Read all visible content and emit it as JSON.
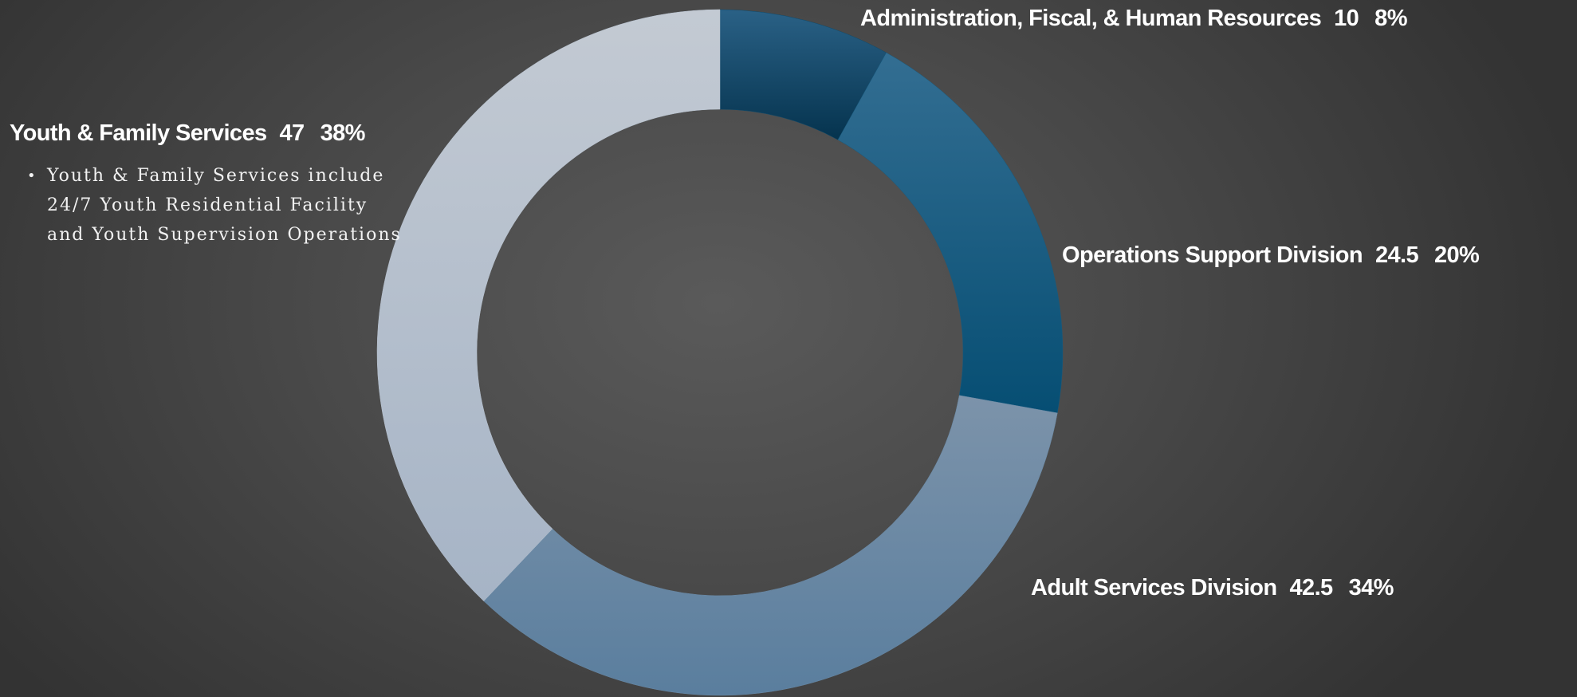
{
  "chart_data": {
    "type": "pie",
    "variant": "donut",
    "title": "",
    "slices": [
      {
        "name": "Administration, Fiscal, & Human Resources",
        "value": 10,
        "value_label": "10",
        "percent_label": "8%",
        "color": "#0f4a6b"
      },
      {
        "name": "Operations Support Division",
        "value": 24.5,
        "value_label": "24.5",
        "percent_label": "20%",
        "color": "#185a7e"
      },
      {
        "name": "Adult Services Division",
        "value": 42.5,
        "value_label": "42.5",
        "percent_label": "34%",
        "color": "#6a8aa6"
      },
      {
        "name": "Youth & Family Services",
        "value": 47,
        "value_label": "47",
        "percent_label": "38%",
        "color": "#b8c3d0"
      }
    ],
    "annotations": [
      "Youth & Family Services include 24/7 Youth Residential Facility and Youth Supervision Operations"
    ]
  }
}
